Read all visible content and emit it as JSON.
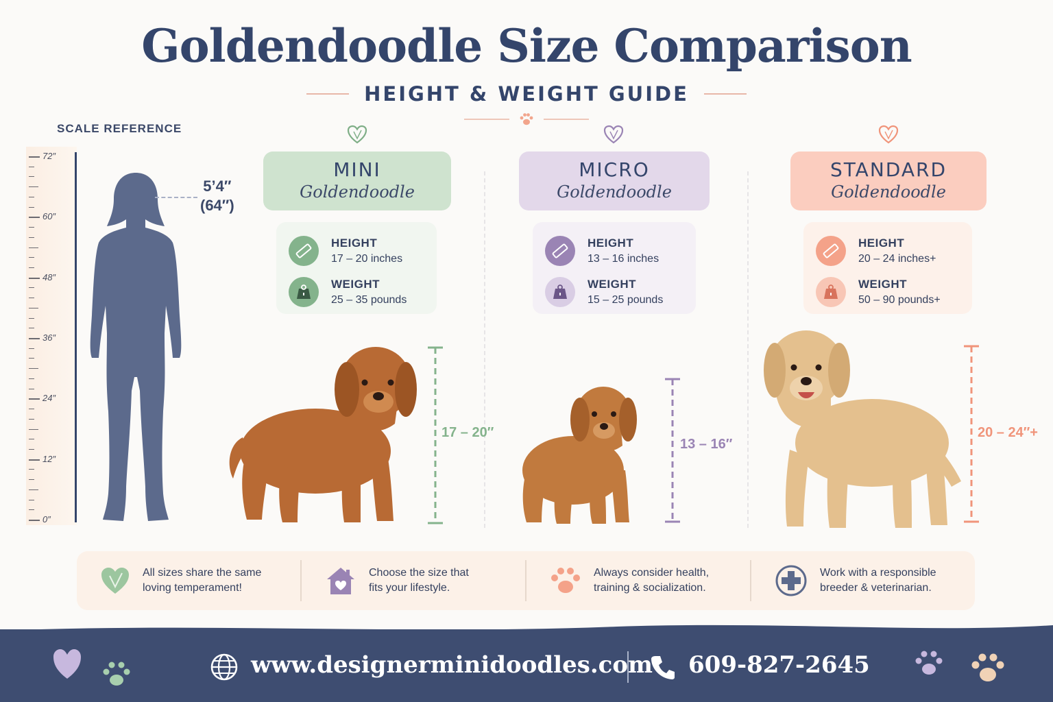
{
  "header": {
    "title": "Goldendoodle Size Comparison",
    "subtitle": "HEIGHT & WEIGHT GUIDE"
  },
  "scale": {
    "label": "SCALE REFERENCE",
    "ticks": [
      "72″",
      "60″",
      "48″",
      "36″",
      "24″",
      "12″",
      "0″"
    ],
    "person_height_line1": "5’4″",
    "person_height_line2": "(64″)"
  },
  "cards": [
    {
      "name": "MINI",
      "sub": "Goldendoodle",
      "height_label": "HEIGHT",
      "height_value": "17 – 20 inches",
      "weight_label": "WEIGHT",
      "weight_value": "25 – 35 pounds",
      "measure": "17 – 20″",
      "color": "#84b38c"
    },
    {
      "name": "MICRO",
      "sub": "Goldendoodle",
      "height_label": "HEIGHT",
      "height_value": "13 – 16 inches",
      "weight_label": "WEIGHT",
      "weight_value": "15 – 25 pounds",
      "measure": "13 – 16″",
      "color": "#9a84b4"
    },
    {
      "name": "STANDARD",
      "sub": "Goldendoodle",
      "height_label": "HEIGHT",
      "height_value": "20 – 24 inches+",
      "weight_label": "WEIGHT",
      "weight_value": "50 – 90 pounds+",
      "measure": "20 – 24″+",
      "color": "#f0947a"
    }
  ],
  "tips": [
    {
      "line1": "All sizes share the same",
      "line2": "loving temperament!"
    },
    {
      "line1": "Choose the size that",
      "line2": "fits your lifestyle."
    },
    {
      "line1": "Always consider health,",
      "line2": "training & socialization."
    },
    {
      "line1": "Work with a responsible",
      "line2": "breeder & veterinarian."
    }
  ],
  "footer": {
    "website": "www.designerminidoodles.com",
    "phone": "609-827-2645"
  }
}
